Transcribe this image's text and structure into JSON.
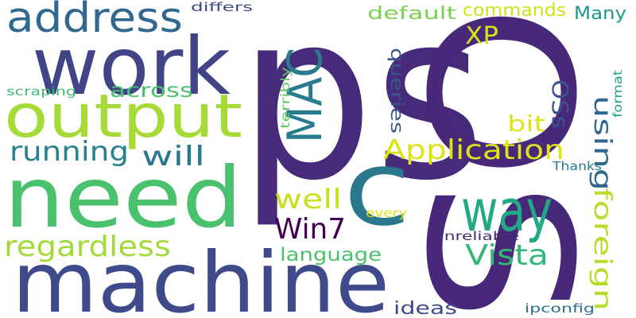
{
  "word_cloud": {
    "words": [
      {
        "text": "ps",
        "color": "#472a7a"
      },
      {
        "text": "OS",
        "color": "#482878"
      },
      {
        "text": "machine",
        "color": "#3e4a89"
      },
      {
        "text": "need",
        "color": "#4ac16d"
      },
      {
        "text": "work",
        "color": "#414487"
      },
      {
        "text": "output",
        "color": "#a5db36"
      },
      {
        "text": "c",
        "color": "#29788e"
      },
      {
        "text": "address",
        "color": "#31688e"
      },
      {
        "text": "way",
        "color": "#22a884"
      },
      {
        "text": "MAC",
        "color": "#287c8e"
      },
      {
        "text": "regardless",
        "color": "#a2da37"
      },
      {
        "text": "running",
        "color": "#26828e"
      },
      {
        "text": "Application",
        "color": "#dde318"
      },
      {
        "text": "Win7",
        "color": "#440154"
      },
      {
        "text": "Vista",
        "color": "#35b779"
      },
      {
        "text": "will",
        "color": "#2a788e"
      },
      {
        "text": "well",
        "color": "#c8e020"
      },
      {
        "text": "using",
        "color": "#31678e"
      },
      {
        "text": "foreign",
        "color": "#b5de2b"
      },
      {
        "text": "across",
        "color": "#4ac16d"
      },
      {
        "text": "bit",
        "color": "#dde318"
      },
      {
        "text": "XP",
        "color": "#d8e219"
      },
      {
        "text": "language",
        "color": "#4ac16d"
      },
      {
        "text": "OSs",
        "color": "#3b528b"
      },
      {
        "text": "default",
        "color": "#7ad151"
      },
      {
        "text": "commands",
        "color": "#d0e11c"
      },
      {
        "text": "Many",
        "color": "#1f988b"
      },
      {
        "text": "ideas",
        "color": "#3e4a89"
      },
      {
        "text": "queries",
        "color": "#39568c"
      },
      {
        "text": "terribly",
        "color": "#5ec962"
      },
      {
        "text": "format",
        "color": "#20a386"
      },
      {
        "text": "scraping",
        "color": "#3dbc74"
      },
      {
        "text": "differs",
        "color": "#3e4c8a"
      },
      {
        "text": "Thanks",
        "color": "#2a788e"
      },
      {
        "text": "every",
        "color": "#dde318"
      },
      {
        "text": "unreliable",
        "color": "#472a7a"
      },
      {
        "text": "ipconfig",
        "color": "#2e6e8e"
      }
    ]
  }
}
